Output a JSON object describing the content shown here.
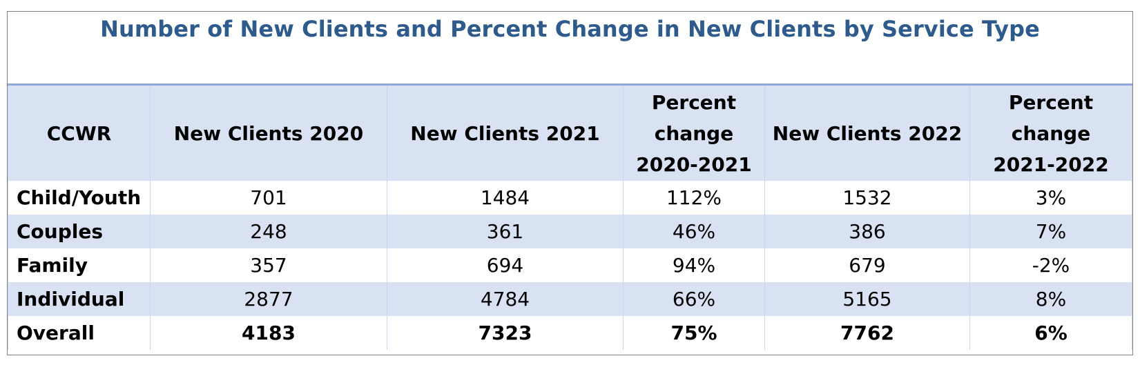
{
  "chart_data": {
    "type": "table",
    "title": "Number of New Clients and Percent Change in New Clients by Service Type",
    "columns": [
      "CCWR",
      "New Clients 2020",
      "New Clients 2021",
      "Percent change 2020-2021",
      "New Clients 2022",
      "Percent change 2021-2022"
    ],
    "column_lines": [
      [
        "CCWR"
      ],
      [
        "New Clients 2020"
      ],
      [
        "New Clients 2021"
      ],
      [
        "Percent",
        "change",
        "2020-2021"
      ],
      [
        "New Clients 2022"
      ],
      [
        "Percent",
        "change",
        "2021-2022"
      ]
    ],
    "rows": [
      {
        "label": "Child/Youth",
        "values": [
          "701",
          "1484",
          "112%",
          "1532",
          "3%"
        ]
      },
      {
        "label": "Couples",
        "values": [
          "248",
          "361",
          "46%",
          "386",
          "7%"
        ]
      },
      {
        "label": "Family",
        "values": [
          "357",
          "694",
          "94%",
          "679",
          "-2%"
        ]
      },
      {
        "label": "Individual",
        "values": [
          "2877",
          "4784",
          "66%",
          "5165",
          "8%"
        ]
      },
      {
        "label": "Overall",
        "values": [
          "4183",
          "7323",
          "75%",
          "7762",
          "6%"
        ],
        "bold": true
      }
    ]
  },
  "colors": {
    "title": "#2e5b8c",
    "header_bg": "#d9e2f3",
    "band_bg": "#d9e2f3",
    "row_bg": "#ffffff",
    "header_rule": "#8eaadb",
    "frame_border": "#7f7f7f"
  }
}
